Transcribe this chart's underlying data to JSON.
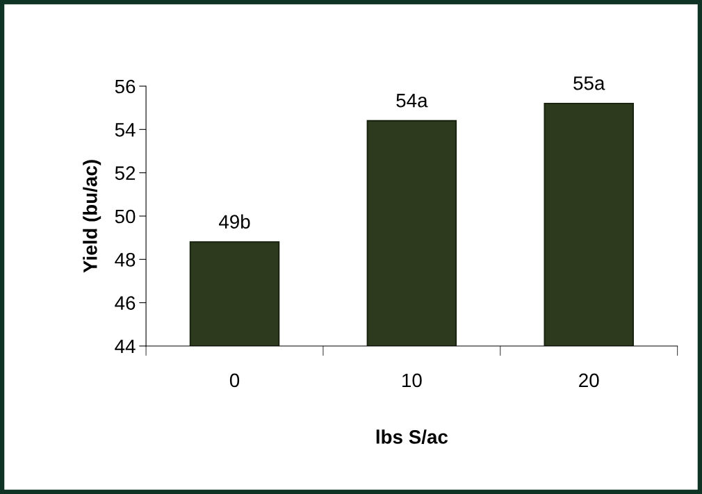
{
  "chart_data": {
    "type": "bar",
    "xlabel": "lbs S/ac",
    "ylabel": "Yield (bu/ac)",
    "categories": [
      "0",
      "10",
      "20"
    ],
    "values": [
      48.8,
      54.4,
      55.2
    ],
    "value_labels": [
      "49b",
      "54a",
      "55a"
    ],
    "color": "#2d3a1e",
    "ylim": [
      44,
      56
    ],
    "yticks": [
      44,
      46,
      48,
      50,
      52,
      54,
      56
    ],
    "grid": false,
    "legend": false
  }
}
